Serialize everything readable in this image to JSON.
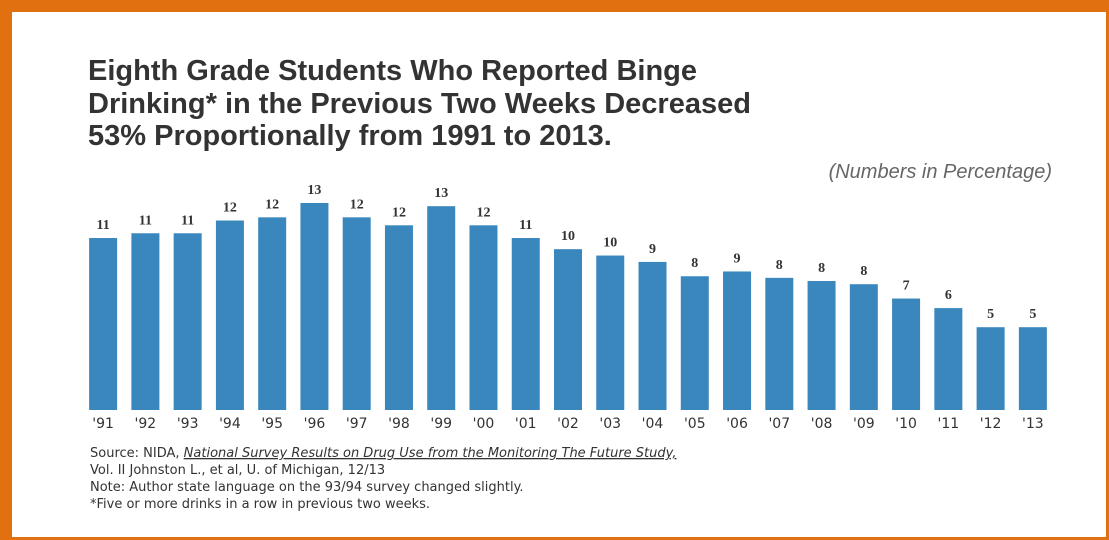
{
  "chart_data": {
    "type": "bar",
    "title_lines": [
      "Eighth Grade Students Who Reported Binge",
      "Drinking* in the Previous Two Weeks Decreased",
      "53% Proportionally from 1991 to 2013."
    ],
    "subtitle": "(Numbers in Percentage)",
    "categories": [
      "'91",
      "'92",
      "'93",
      "'94",
      "'95",
      "'96",
      "'97",
      "'98",
      "'99",
      "'00",
      "'01",
      "'02",
      "'03",
      "'04",
      "'05",
      "'06",
      "'07",
      "'08",
      "'09",
      "'10",
      "'11",
      "'12",
      "'13"
    ],
    "values": [
      10.8,
      11.1,
      11.1,
      11.9,
      12.1,
      13.0,
      12.1,
      11.6,
      12.8,
      11.6,
      10.8,
      10.1,
      9.7,
      9.3,
      8.4,
      8.7,
      8.3,
      8.1,
      7.9,
      7.0,
      6.4,
      5.2,
      5.2
    ],
    "value_labels": [
      "11",
      "11",
      "11",
      "12",
      "12",
      "13",
      "12",
      "12",
      "13",
      "12",
      "11",
      "10",
      "10",
      "9",
      "8",
      "9",
      "8",
      "8",
      "8",
      "7",
      "6",
      "5",
      "5"
    ],
    "color": "#3a87bd",
    "ylim": [
      0,
      13.4
    ],
    "source_label": "Source: NIDA,",
    "source_title": "National Survey Results on Drug Use from the Monitoring The Future Study,",
    "notes": [
      "Vol. II Johnston L., et al, U. of Michigan, 12/13",
      "Note: Author state language on the 93/94 survey changed slightly.",
      "*Five or more drinks in a row in previous two weeks."
    ]
  }
}
